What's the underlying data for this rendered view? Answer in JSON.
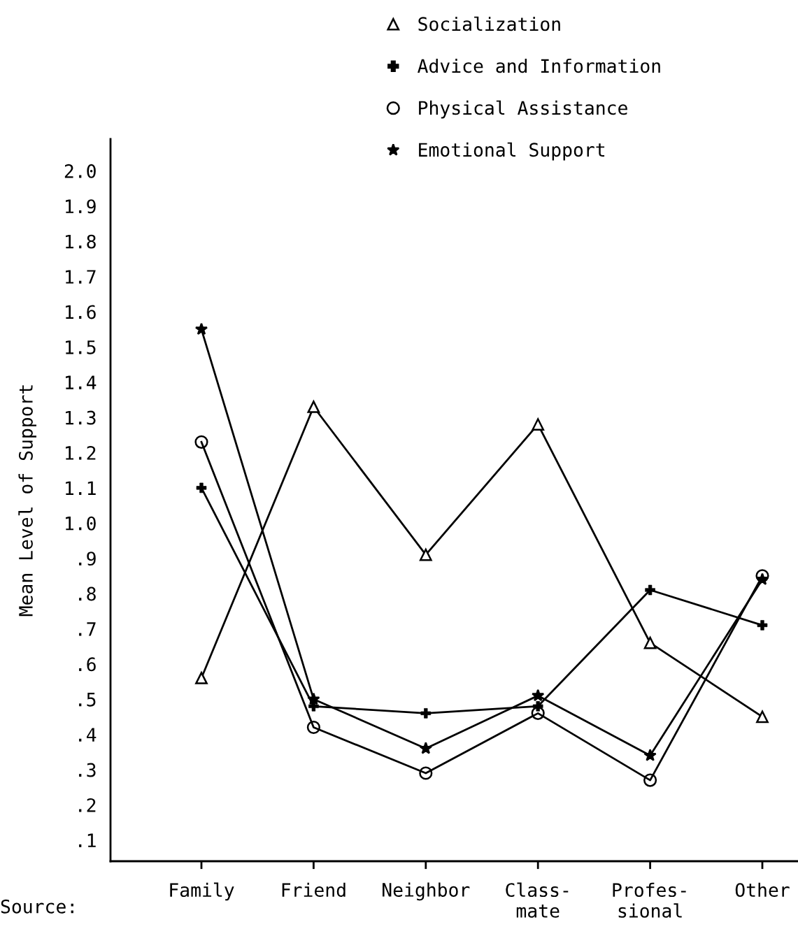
{
  "chart_data": {
    "type": "line",
    "xlabel": "Source:",
    "ylabel": "Mean Level of Support",
    "categories": [
      "Family",
      "Friend",
      "Neighbor",
      "Class-\nmate",
      "Profes-\nsional",
      "Other"
    ],
    "series": [
      {
        "name": "Socialization",
        "color": "#000000",
        "marker": "triangle",
        "values": [
          0.56,
          1.33,
          0.91,
          1.28,
          0.66,
          0.45
        ]
      },
      {
        "name": "Advice and Information",
        "color": "#000000",
        "marker": "cross",
        "values": [
          1.1,
          0.48,
          0.46,
          0.48,
          0.81,
          0.71
        ]
      },
      {
        "name": "Physical Assistance",
        "color": "#000000",
        "marker": "circle",
        "values": [
          1.23,
          0.42,
          0.29,
          0.46,
          0.27,
          0.85
        ]
      },
      {
        "name": "Emotional Support",
        "color": "#000000",
        "marker": "star",
        "values": [
          1.55,
          0.5,
          0.36,
          0.51,
          0.34,
          0.84
        ]
      }
    ],
    "ylim": [
      0.04,
      2.09
    ],
    "yticks": [
      {
        "value": 0.1,
        "label": ".1"
      },
      {
        "value": 0.2,
        "label": ".2"
      },
      {
        "value": 0.3,
        "label": ".3"
      },
      {
        "value": 0.4,
        "label": ".4"
      },
      {
        "value": 0.5,
        "label": ".5"
      },
      {
        "value": 0.6,
        "label": ".6"
      },
      {
        "value": 0.7,
        "label": ".7"
      },
      {
        "value": 0.8,
        "label": ".8"
      },
      {
        "value": 0.9,
        "label": ".9"
      },
      {
        "value": 1.0,
        "label": "1.0"
      },
      1.1,
      1.2,
      1.3,
      1.4,
      1.5,
      1.6,
      1.7,
      1.8,
      1.9,
      {
        "value": 2.0,
        "label": "2.0"
      }
    ],
    "grid": false,
    "legend": "top",
    "line_style": "solid"
  }
}
